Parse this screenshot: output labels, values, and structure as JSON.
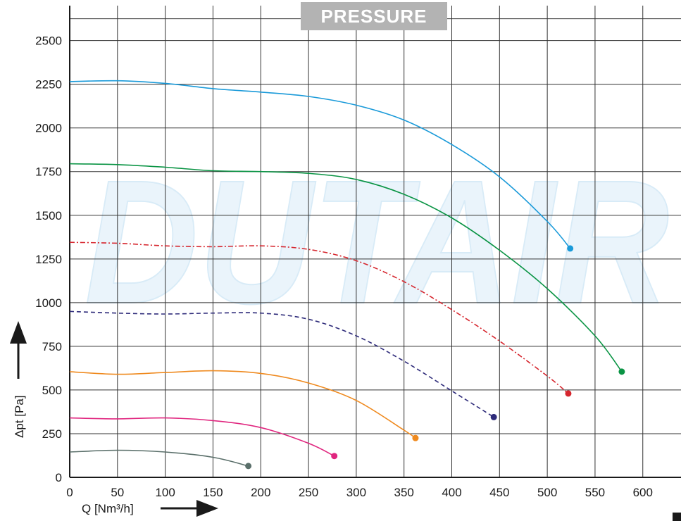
{
  "chart_data": {
    "type": "line",
    "title": "PRESSURE",
    "xlabel": "Q [Nm³/h]",
    "ylabel": "Δpt [Pa]",
    "xlim": [
      0,
      640
    ],
    "ylim": [
      0,
      2700
    ],
    "xticks": [
      0,
      50,
      100,
      150,
      200,
      250,
      300,
      350,
      400,
      450,
      500,
      550,
      600
    ],
    "yticks": [
      0,
      250,
      500,
      750,
      1000,
      1250,
      1500,
      1750,
      2000,
      2250,
      2500
    ],
    "grid": true,
    "watermark": "DUTAIR",
    "colors": {
      "grid": "#333333",
      "title_box": "#b3b3b3",
      "watermark": "#eaf4fb"
    },
    "series": [
      {
        "color": "#1a9ad9",
        "dash": "solid",
        "x": [
          0,
          50,
          100,
          150,
          200,
          250,
          300,
          350,
          400,
          450,
          500,
          524
        ],
        "y": [
          2265,
          2270,
          2255,
          2225,
          2205,
          2180,
          2130,
          2045,
          1905,
          1720,
          1465,
          1310
        ]
      },
      {
        "color": "#0a9444",
        "dash": "solid",
        "x": [
          0,
          50,
          100,
          150,
          200,
          250,
          300,
          350,
          400,
          450,
          500,
          550,
          578
        ],
        "y": [
          1795,
          1790,
          1775,
          1755,
          1750,
          1740,
          1705,
          1620,
          1485,
          1300,
          1080,
          810,
          605
        ]
      },
      {
        "color": "#d6262e",
        "dash": "dashdot",
        "x": [
          0,
          50,
          100,
          150,
          200,
          250,
          300,
          350,
          400,
          450,
          500,
          522
        ],
        "y": [
          1345,
          1340,
          1325,
          1320,
          1325,
          1305,
          1240,
          1120,
          960,
          780,
          580,
          480
        ]
      },
      {
        "color": "#2e2b7a",
        "dash": "dashed",
        "x": [
          0,
          50,
          100,
          150,
          200,
          250,
          300,
          350,
          400,
          444
        ],
        "y": [
          950,
          940,
          935,
          940,
          940,
          905,
          810,
          665,
          495,
          345
        ]
      },
      {
        "color": "#ef8a1f",
        "dash": "solid",
        "x": [
          0,
          50,
          100,
          150,
          200,
          250,
          300,
          350,
          362
        ],
        "y": [
          605,
          590,
          600,
          610,
          595,
          540,
          440,
          270,
          225
        ]
      },
      {
        "color": "#e0267f",
        "dash": "solid",
        "x": [
          0,
          50,
          100,
          150,
          200,
          250,
          277
        ],
        "y": [
          340,
          335,
          340,
          325,
          285,
          195,
          122
        ]
      },
      {
        "color": "#5a6f6a",
        "dash": "solid",
        "x": [
          0,
          50,
          100,
          150,
          187
        ],
        "y": [
          145,
          155,
          145,
          115,
          65
        ]
      }
    ]
  }
}
